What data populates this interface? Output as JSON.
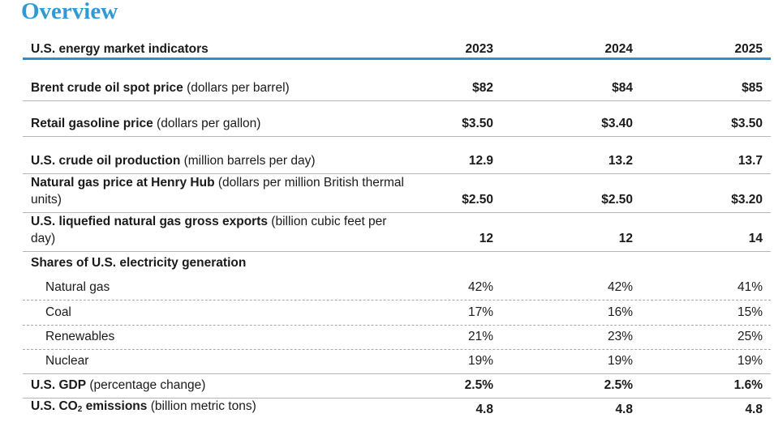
{
  "title": "Overview",
  "header": {
    "label": "U.S. energy market indicators",
    "years": [
      "2023",
      "2024",
      "2025"
    ]
  },
  "rows": [
    {
      "name": "Brent crude oil spot price",
      "unit": " (dollars per barrel)",
      "values": [
        "$82",
        "$84",
        "$85"
      ]
    },
    {
      "name": "Retail gasoline price",
      "unit": " (dollars per gallon)",
      "values": [
        "$3.50",
        "$3.40",
        "$3.50"
      ]
    },
    {
      "name": "U.S. crude oil production",
      "unit": " (million barrels per day)",
      "values": [
        "12.9",
        "13.2",
        "13.7"
      ]
    },
    {
      "name": "Natural gas price at Henry Hub",
      "unit": " (dollars per million British thermal units)",
      "values": [
        "$2.50",
        "$2.50",
        "$3.20"
      ]
    },
    {
      "name": "U.S. liquefied natural gas gross exports",
      "unit": " (billion cubic feet per day)",
      "values": [
        "12",
        "12",
        "14"
      ]
    },
    {
      "name": "Shares of U.S. electricity generation"
    },
    {
      "name": "Natural gas",
      "values": [
        "42%",
        "42%",
        "41%"
      ]
    },
    {
      "name": "Coal",
      "values": [
        "17%",
        "16%",
        "15%"
      ]
    },
    {
      "name": "Renewables",
      "values": [
        "21%",
        "23%",
        "25%"
      ]
    },
    {
      "name": "Nuclear",
      "values": [
        "19%",
        "19%",
        "19%"
      ]
    },
    {
      "name": "U.S. GDP",
      "unit": " (percentage change)",
      "values": [
        "2.5%",
        "2.5%",
        "1.6%"
      ]
    },
    {
      "name": "U.S. CO",
      "name_sub": "2",
      "name_suffix": " emissions",
      "unit": " (billion metric tons)",
      "values": [
        "4.8",
        "4.8",
        "4.8"
      ]
    }
  ]
}
